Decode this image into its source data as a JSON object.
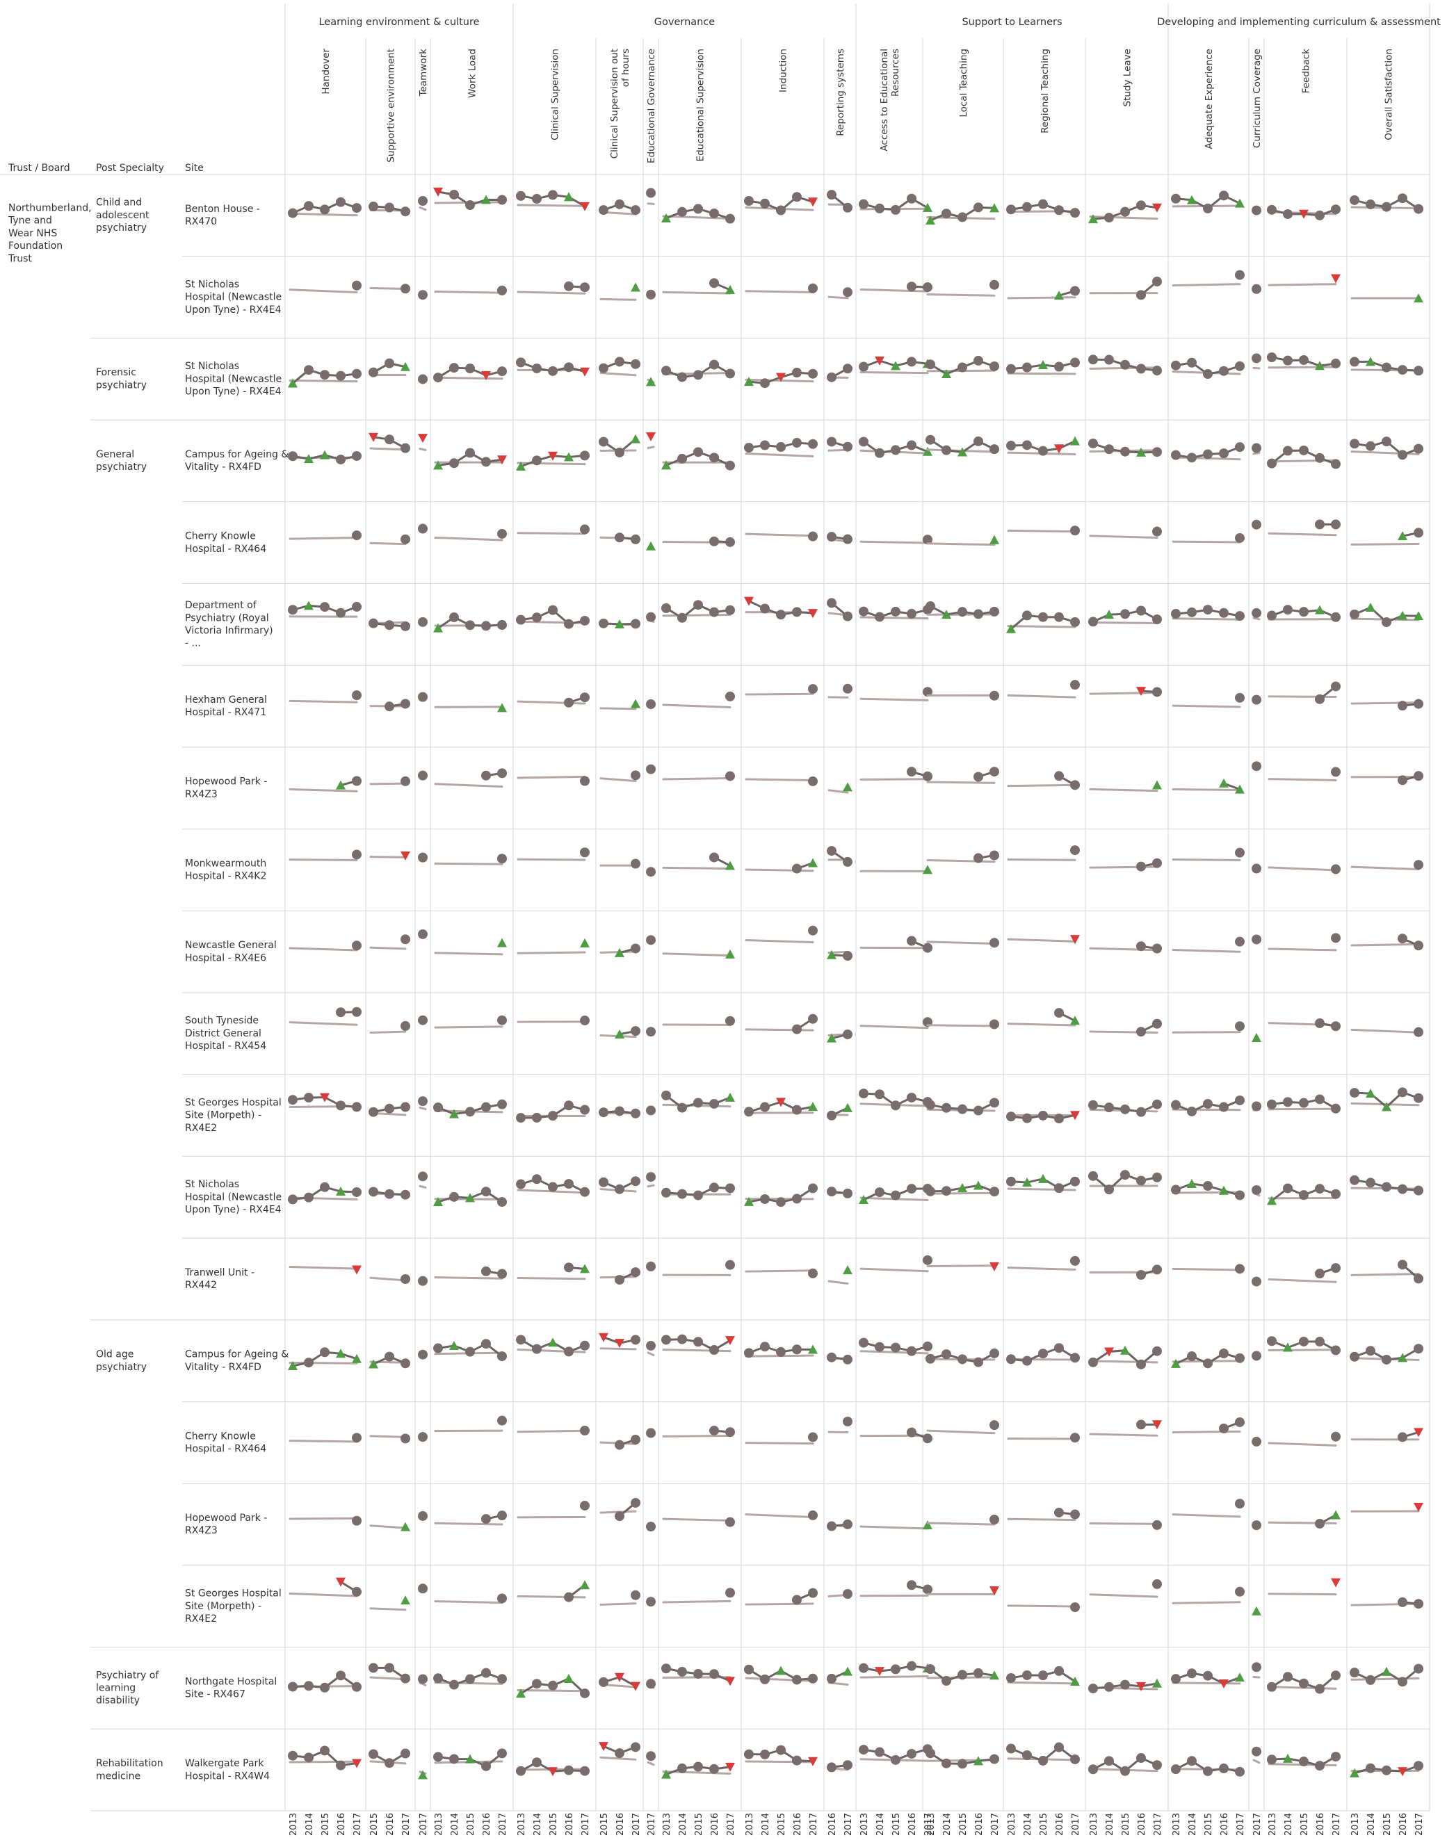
{
  "header_labels": {
    "trust": "Trust / Board",
    "specialty": "Post Specialty",
    "site": "Site"
  },
  "colors": {
    "point": "#786d6b",
    "line": "#6b6361",
    "baseline": "#b5a5a5",
    "above": "#4e9d43",
    "below": "#d93b3b",
    "grid": "#d7d7d7",
    "na": "#b3b3b3"
  },
  "chart_data": {
    "type": "small-multiples-line",
    "legend": "none",
    "x_ticks": [
      "2013",
      "2014",
      "2015",
      "2016",
      "2017"
    ],
    "groups": [
      {
        "title": "Learning environment & culture",
        "indicators": [
          "Handover",
          "Supportive environment",
          "Teamwork",
          "Work Load"
        ]
      },
      {
        "title": "Governance",
        "indicators": [
          "Clinical Supervision",
          "Clinical Supervision out of hours",
          "Educational Governance",
          "Educational Supervision",
          "Induction",
          "Reporting systems"
        ]
      },
      {
        "title": "Support to Learners",
        "indicators": [
          "Access to Educational Resources",
          "Local Teaching",
          "Regional Teaching",
          "Study Leave"
        ]
      },
      {
        "title": "Developing and implementing curriculum & assessment",
        "indicators": [
          "Adequate Experience",
          "Curriculum Coverage",
          "Feedback",
          "Overall Satisfaction"
        ]
      }
    ],
    "trust": "Northumberland, Tyne and Wear NHS Foundation Trust",
    "specialties": [
      {
        "name": "Child and adolescent psychiatry",
        "sites": [
          "Benton House - RX470",
          "St Nicholas Hospital (Newcastle Upon Tyne) - RX4E4"
        ]
      },
      {
        "name": "Forensic psychiatry",
        "sites": [
          "St Nicholas Hospital (Newcastle Upon Tyne) - RX4E4"
        ]
      },
      {
        "name": "General psychiatry",
        "sites": [
          "Campus for Ageing & Vitality - RX4FD",
          "Cherry Knowle Hospital - RX464",
          "Department of Psychiatry (Royal Victoria Infirmary) - ...",
          "Hexham General Hospital - RX471",
          "Hopewood Park - RX4Z3",
          "Monkwearmouth Hospital - RX4K2",
          "Newcastle General Hospital - RX4E6",
          "South Tyneside District General Hospital - RX454",
          "St Georges Hospital Site (Morpeth) - RX4E2",
          "St Nicholas Hospital (Newcastle Upon Tyne) - RX4E4",
          "Tranwell Unit - RX442"
        ]
      },
      {
        "name": "Old age psychiatry",
        "sites": [
          "Campus for Ageing & Vitality - RX4FD",
          "Cherry Knowle Hospital - RX464",
          "Hopewood Park - RX4Z3",
          "St Georges Hospital Site (Morpeth) - RX4E2"
        ]
      },
      {
        "name": "Psychiatry of learning disability",
        "sites": [
          "Northgate Hospital Site - RX467"
        ]
      },
      {
        "name": "Rehabilitation medicine",
        "sites": [
          "Walkergate Park Hospital - RX4W4"
        ]
      }
    ]
  }
}
